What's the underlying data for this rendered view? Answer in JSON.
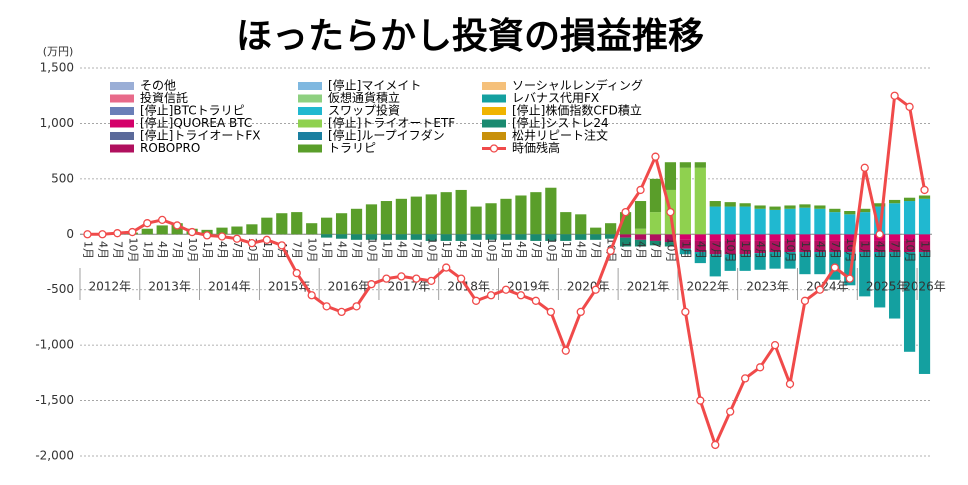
{
  "chart_data": {
    "type": "bar",
    "title": "ほったらかし投資の損益推移",
    "y_unit": "(万円)",
    "categories": [
      "1月",
      "4月",
      "7月",
      "10月",
      "1月",
      "4月",
      "7月",
      "10月",
      "1月",
      "4月",
      "7月",
      "10月",
      "1月",
      "4月",
      "7月",
      "10月",
      "1月",
      "4月",
      "7月",
      "10月",
      "1月",
      "4月",
      "7月",
      "10月",
      "1月",
      "4月",
      "7月",
      "10月",
      "1月",
      "4月",
      "7月",
      "10月",
      "1月",
      "4月",
      "7月",
      "10月",
      "1月",
      "4月",
      "7月",
      "10月",
      "1月",
      "4月",
      "7月",
      "10月",
      "1月",
      "4月",
      "7月",
      "10月",
      "1月",
      "4月",
      "7月",
      "10月",
      "1月",
      "4月",
      "7月",
      "10月",
      "1月"
    ],
    "years": [
      "2012年",
      "2013年",
      "2014年",
      "2015年",
      "2016年",
      "2017年",
      "2018年",
      "2019年",
      "2020年",
      "2021年",
      "2022年",
      "2023年",
      "2024年",
      "2025年",
      "2026年"
    ],
    "ylim": [
      -2000,
      1500
    ],
    "yticks": [
      {
        "value": -2000,
        "label": "-2,000"
      },
      {
        "value": -1500,
        "label": "-1,500"
      },
      {
        "value": -1000,
        "label": "-1,000"
      },
      -500,
      0,
      500,
      {
        "value": 1000,
        "label": "1,000"
      },
      {
        "value": 1500,
        "label": "1,500"
      }
    ],
    "grid": true,
    "series": [
      {
        "name": "その他",
        "color": "#9aaed6",
        "values": [
          0,
          0,
          0,
          0,
          0,
          0,
          0,
          0,
          0,
          0,
          0,
          0,
          0,
          0,
          0,
          0,
          0,
          0,
          0,
          0,
          0,
          0,
          0,
          0,
          0,
          0,
          0,
          0,
          0,
          0,
          0,
          0,
          0,
          0,
          0,
          0,
          0,
          0,
          0,
          0,
          0,
          0,
          0,
          0,
          0,
          0,
          0,
          0,
          0,
          0,
          0,
          0,
          0,
          0,
          0,
          0,
          0
        ]
      },
      {
        "name": "投資信託",
        "color": "#e86a8a",
        "values": [
          0,
          0,
          0,
          0,
          0,
          0,
          0,
          0,
          0,
          0,
          0,
          0,
          0,
          0,
          0,
          0,
          0,
          0,
          0,
          0,
          0,
          0,
          0,
          0,
          0,
          0,
          0,
          0,
          0,
          0,
          0,
          0,
          0,
          0,
          0,
          0,
          0,
          0,
          0,
          0,
          0,
          0,
          0,
          0,
          0,
          0,
          0,
          0,
          0,
          0,
          0,
          0,
          0,
          0,
          0,
          0,
          0
        ]
      },
      {
        "name": "[停止]BTCトラリピ",
        "color": "#6a7fb8",
        "values": [
          0,
          0,
          0,
          0,
          0,
          0,
          0,
          0,
          0,
          0,
          0,
          0,
          0,
          0,
          0,
          0,
          0,
          0,
          0,
          0,
          0,
          0,
          0,
          0,
          0,
          0,
          0,
          0,
          0,
          0,
          0,
          0,
          0,
          0,
          0,
          0,
          0,
          0,
          0,
          0,
          0,
          0,
          0,
          0,
          0,
          0,
          0,
          0,
          0,
          0,
          0,
          0,
          0,
          0,
          0,
          0,
          0
        ]
      },
      {
        "name": "[停止]QUOREA BTC",
        "color": "#d4006a",
        "values": [
          0,
          0,
          0,
          0,
          0,
          0,
          0,
          0,
          0,
          0,
          0,
          0,
          0,
          0,
          0,
          0,
          0,
          0,
          0,
          0,
          0,
          0,
          0,
          0,
          0,
          0,
          0,
          0,
          0,
          0,
          0,
          0,
          0,
          0,
          0,
          0,
          0,
          0,
          0,
          0,
          -50,
          -60,
          -60,
          -60,
          -60,
          -60,
          -60,
          -60,
          -60,
          -60,
          -60,
          -60,
          -60,
          -60,
          -60,
          -60,
          -60
        ]
      },
      {
        "name": "[停止]トライオートFX",
        "color": "#5b6a9a",
        "values": [
          0,
          0,
          0,
          0,
          0,
          0,
          0,
          0,
          0,
          0,
          0,
          0,
          0,
          0,
          0,
          0,
          0,
          0,
          0,
          0,
          0,
          0,
          0,
          0,
          0,
          0,
          0,
          0,
          0,
          0,
          0,
          0,
          0,
          0,
          0,
          0,
          0,
          0,
          0,
          0,
          0,
          0,
          0,
          0,
          0,
          0,
          0,
          0,
          0,
          0,
          0,
          0,
          0,
          0,
          0,
          0,
          0
        ]
      },
      {
        "name": "ROBOPRO",
        "color": "#b0105e",
        "values": [
          0,
          0,
          0,
          0,
          0,
          0,
          0,
          0,
          0,
          0,
          0,
          0,
          0,
          0,
          0,
          0,
          0,
          0,
          0,
          0,
          0,
          0,
          0,
          0,
          0,
          0,
          0,
          0,
          0,
          0,
          0,
          0,
          0,
          0,
          0,
          0,
          -30,
          -50,
          -60,
          -70,
          -80,
          -100,
          -120,
          -120,
          -120,
          -110,
          -100,
          -100,
          -100,
          -100,
          -100,
          -100,
          -100,
          -100,
          -100,
          -100,
          -100
        ]
      },
      {
        "name": "[停止]マイメイト",
        "color": "#7fb8e0",
        "values": [
          0,
          0,
          0,
          0,
          0,
          0,
          0,
          0,
          0,
          0,
          0,
          0,
          0,
          0,
          0,
          0,
          0,
          0,
          0,
          0,
          0,
          0,
          0,
          0,
          0,
          0,
          0,
          0,
          0,
          0,
          0,
          0,
          0,
          0,
          0,
          0,
          0,
          0,
          0,
          0,
          0,
          0,
          0,
          0,
          0,
          0,
          0,
          0,
          0,
          0,
          0,
          0,
          0,
          0,
          0,
          0,
          0
        ]
      },
      {
        "name": "仮想通貨積立",
        "color": "#8ed080",
        "values": [
          0,
          0,
          0,
          0,
          0,
          0,
          0,
          0,
          0,
          0,
          0,
          0,
          0,
          0,
          0,
          0,
          0,
          0,
          0,
          0,
          0,
          0,
          0,
          0,
          0,
          0,
          0,
          0,
          0,
          0,
          0,
          0,
          0,
          0,
          0,
          0,
          0,
          0,
          0,
          0,
          0,
          0,
          0,
          0,
          0,
          0,
          0,
          0,
          0,
          0,
          0,
          0,
          0,
          0,
          0,
          0,
          0
        ]
      },
      {
        "name": "スワップ投資",
        "color": "#20b8d0",
        "values": [
          0,
          0,
          0,
          0,
          0,
          0,
          0,
          0,
          0,
          0,
          0,
          0,
          0,
          0,
          0,
          0,
          0,
          0,
          0,
          0,
          0,
          0,
          0,
          0,
          0,
          0,
          0,
          0,
          0,
          0,
          0,
          0,
          0,
          0,
          0,
          0,
          0,
          0,
          0,
          0,
          0,
          0,
          250,
          250,
          250,
          230,
          220,
          230,
          240,
          230,
          200,
          180,
          200,
          250,
          280,
          300,
          320
        ]
      },
      {
        "name": "[停止]トライオートETF",
        "color": "#8fd14f",
        "values": [
          0,
          0,
          0,
          0,
          0,
          0,
          0,
          0,
          0,
          0,
          0,
          0,
          0,
          0,
          0,
          0,
          0,
          0,
          0,
          0,
          0,
          0,
          0,
          0,
          0,
          0,
          0,
          0,
          0,
          0,
          0,
          0,
          0,
          0,
          0,
          0,
          0,
          50,
          200,
          400,
          600,
          600,
          0,
          0,
          0,
          0,
          0,
          0,
          0,
          0,
          0,
          0,
          0,
          0,
          0,
          0,
          0
        ]
      },
      {
        "name": "[停止]ループイフダン",
        "color": "#1a7fa0",
        "values": [
          0,
          0,
          0,
          0,
          0,
          0,
          0,
          0,
          0,
          0,
          0,
          0,
          0,
          0,
          0,
          0,
          0,
          0,
          0,
          0,
          0,
          0,
          0,
          0,
          0,
          0,
          0,
          0,
          0,
          0,
          0,
          0,
          0,
          0,
          0,
          0,
          0,
          0,
          0,
          0,
          0,
          0,
          0,
          0,
          0,
          0,
          0,
          0,
          0,
          0,
          0,
          0,
          0,
          0,
          0,
          0,
          0
        ]
      },
      {
        "name": "トラリピ",
        "color": "#5a9e2a",
        "values": [
          0,
          5,
          10,
          15,
          50,
          80,
          100,
          50,
          40,
          60,
          70,
          90,
          150,
          190,
          200,
          100,
          150,
          190,
          230,
          270,
          300,
          320,
          340,
          360,
          380,
          400,
          250,
          280,
          320,
          350,
          380,
          420,
          200,
          180,
          60,
          100,
          200,
          250,
          300,
          250,
          50,
          50,
          50,
          40,
          30,
          30,
          30,
          30,
          30,
          30,
          30,
          30,
          30,
          30,
          30,
          30,
          30
        ]
      },
      {
        "name": "ソーシャルレンディング",
        "color": "#f5c07a",
        "values": [
          0,
          0,
          0,
          0,
          0,
          0,
          0,
          0,
          0,
          0,
          0,
          0,
          0,
          0,
          0,
          0,
          0,
          0,
          0,
          0,
          0,
          0,
          0,
          0,
          0,
          0,
          0,
          0,
          0,
          0,
          0,
          0,
          0,
          0,
          0,
          0,
          0,
          0,
          0,
          0,
          0,
          0,
          0,
          0,
          0,
          0,
          0,
          0,
          0,
          0,
          0,
          0,
          0,
          0,
          0,
          0,
          0
        ]
      },
      {
        "name": "レバナス代用FX",
        "color": "#14a0a0",
        "values": [
          0,
          0,
          0,
          0,
          0,
          0,
          0,
          0,
          0,
          0,
          0,
          0,
          0,
          0,
          0,
          0,
          0,
          0,
          0,
          0,
          0,
          0,
          0,
          0,
          0,
          0,
          0,
          0,
          0,
          0,
          0,
          0,
          0,
          0,
          0,
          0,
          0,
          0,
          0,
          0,
          -50,
          -100,
          -200,
          -150,
          -150,
          -150,
          -150,
          -150,
          -200,
          -200,
          -250,
          -300,
          -400,
          -500,
          -600,
          -900,
          -1100
        ]
      },
      {
        "name": "[停止]株価指数CFD積立",
        "color": "#f0b400",
        "values": [
          0,
          0,
          0,
          0,
          0,
          0,
          0,
          0,
          0,
          0,
          0,
          0,
          0,
          0,
          0,
          0,
          0,
          0,
          0,
          0,
          0,
          0,
          0,
          0,
          0,
          0,
          0,
          0,
          0,
          0,
          0,
          0,
          0,
          0,
          0,
          0,
          0,
          0,
          0,
          0,
          0,
          0,
          0,
          0,
          0,
          0,
          0,
          0,
          0,
          0,
          0,
          0,
          0,
          0,
          0,
          0,
          0
        ]
      },
      {
        "name": "[停止]シストレ24",
        "color": "#1a8a70",
        "values": [
          0,
          0,
          0,
          0,
          0,
          0,
          0,
          0,
          0,
          0,
          0,
          0,
          0,
          0,
          0,
          0,
          -30,
          -40,
          -50,
          -50,
          -50,
          -50,
          -50,
          -60,
          -60,
          -60,
          -50,
          -50,
          -50,
          -50,
          -60,
          -60,
          -60,
          -50,
          -50,
          -40,
          -80,
          -60,
          -40,
          -40,
          0,
          0,
          0,
          0,
          0,
          0,
          0,
          0,
          0,
          0,
          0,
          0,
          0,
          0,
          0,
          0,
          0
        ]
      },
      {
        "name": "松井リピート注文",
        "color": "#c8900a",
        "values": [
          0,
          0,
          0,
          0,
          0,
          0,
          0,
          0,
          0,
          0,
          0,
          0,
          0,
          0,
          0,
          0,
          0,
          0,
          0,
          0,
          0,
          0,
          0,
          0,
          0,
          0,
          0,
          0,
          0,
          0,
          0,
          0,
          0,
          0,
          0,
          0,
          0,
          0,
          0,
          0,
          0,
          0,
          0,
          0,
          0,
          0,
          0,
          0,
          0,
          0,
          0,
          0,
          0,
          0,
          0,
          0,
          0
        ]
      },
      {
        "name": "時価残高",
        "type": "line",
        "color": "#f04a4a",
        "values": [
          0,
          0,
          10,
          20,
          100,
          130,
          80,
          20,
          -10,
          -20,
          -40,
          -80,
          -50,
          -100,
          -350,
          -550,
          -650,
          -700,
          -650,
          -450,
          -400,
          -380,
          -400,
          -420,
          -300,
          -400,
          -600,
          -550,
          -500,
          -550,
          -600,
          -700,
          -1050,
          -700,
          -500,
          -150,
          200,
          400,
          700,
          200,
          -700,
          -1500,
          -1900,
          -1600,
          -1300,
          -1200,
          -1000,
          -1350,
          -600,
          -500,
          -300,
          -400,
          600,
          0,
          1250,
          1150,
          400
        ]
      }
    ]
  }
}
